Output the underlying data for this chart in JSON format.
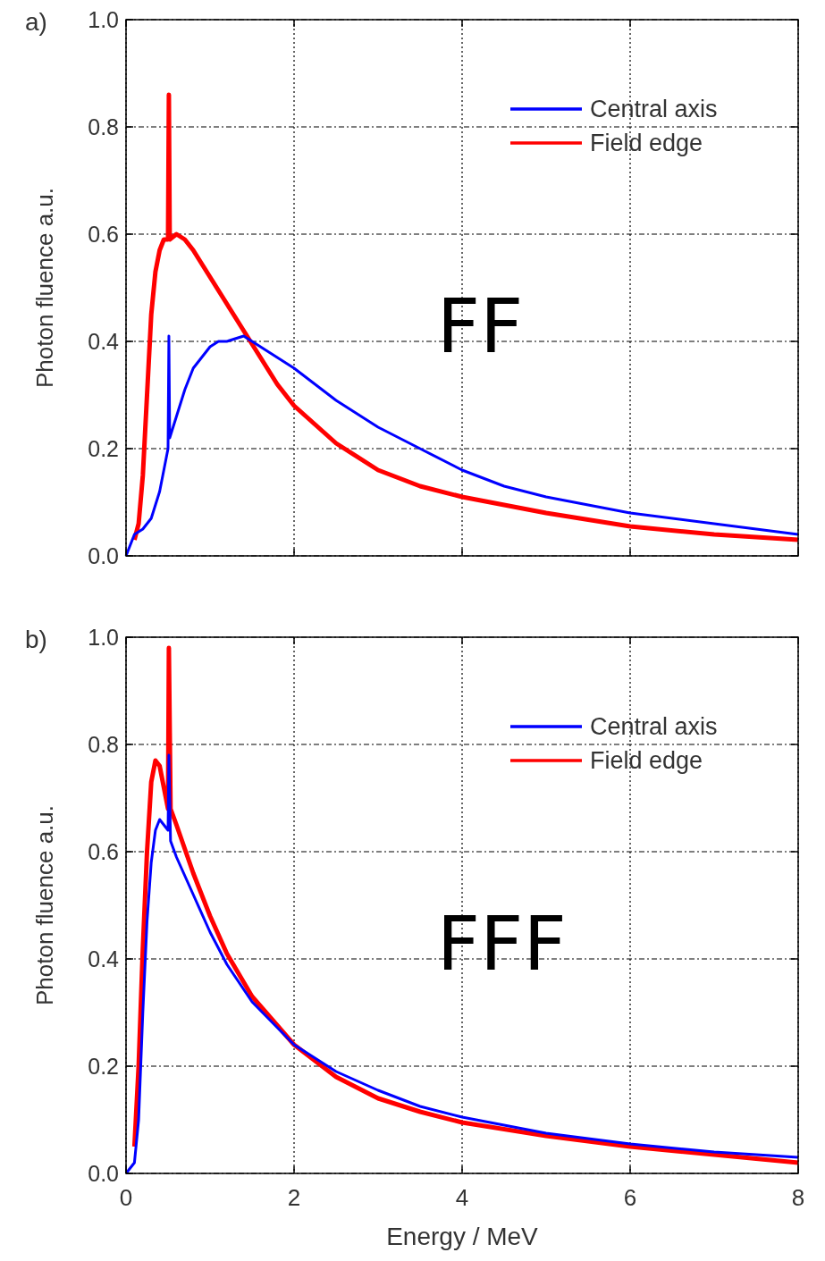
{
  "chart_data": [
    {
      "type": "line",
      "annotations": [
        "a)",
        "FF"
      ],
      "ylabel": "Photon fluence a.u.",
      "xlim": [
        0,
        8
      ],
      "xticks": [
        0,
        2,
        4,
        6,
        8
      ],
      "ylim": [
        0,
        1
      ],
      "yticks": [
        {
          "value": 0,
          "label": "0.0"
        },
        {
          "value": 0.2,
          "label": "0.2"
        },
        {
          "value": 0.4,
          "label": "0.4"
        },
        {
          "value": 0.6,
          "label": "0.6"
        },
        {
          "value": 0.8,
          "label": "0.8"
        },
        {
          "value": 1,
          "label": "1.0"
        }
      ],
      "grid": true,
      "legend": "top right",
      "tick_labels": "y",
      "series": [
        {
          "name": "Central axis",
          "color": "#0000ff",
          "x": [
            0,
            0.1,
            0.2,
            0.3,
            0.4,
            0.5,
            0.51,
            0.52,
            0.6,
            0.7,
            0.8,
            0.9,
            1.0,
            1.1,
            1.2,
            1.4,
            1.6,
            1.8,
            2.0,
            2.5,
            3,
            3.5,
            4,
            4.5,
            5,
            5.5,
            6,
            7,
            8
          ],
          "values": [
            0,
            0.04,
            0.05,
            0.07,
            0.12,
            0.2,
            0.41,
            0.22,
            0.26,
            0.31,
            0.35,
            0.37,
            0.39,
            0.4,
            0.4,
            0.41,
            0.39,
            0.37,
            0.35,
            0.29,
            0.24,
            0.2,
            0.16,
            0.13,
            0.11,
            0.095,
            0.08,
            0.06,
            0.04
          ]
        },
        {
          "name": "Field edge",
          "color": "#ff0000",
          "x": [
            0.1,
            0.15,
            0.2,
            0.25,
            0.3,
            0.35,
            0.4,
            0.45,
            0.5,
            0.51,
            0.52,
            0.6,
            0.7,
            0.8,
            1.0,
            1.2,
            1.4,
            1.6,
            1.8,
            2.0,
            2.5,
            3,
            3.5,
            4,
            5,
            6,
            7,
            8
          ],
          "values": [
            0.03,
            0.06,
            0.15,
            0.3,
            0.45,
            0.53,
            0.57,
            0.59,
            0.59,
            0.86,
            0.59,
            0.6,
            0.59,
            0.57,
            0.52,
            0.47,
            0.42,
            0.37,
            0.32,
            0.28,
            0.21,
            0.16,
            0.13,
            0.11,
            0.08,
            0.055,
            0.04,
            0.03
          ]
        }
      ]
    },
    {
      "type": "line",
      "annotations": [
        "b)",
        "FFF"
      ],
      "xlabel": "Energy / MeV",
      "ylabel": "Photon fluence a.u.",
      "xlim": [
        0,
        8
      ],
      "xticks": [
        0,
        2,
        4,
        6,
        8
      ],
      "ylim": [
        0,
        1
      ],
      "yticks": [
        {
          "value": 0,
          "label": "0.0"
        },
        {
          "value": 0.2,
          "label": "0.2"
        },
        {
          "value": 0.4,
          "label": "0.4"
        },
        {
          "value": 0.6,
          "label": "0.6"
        },
        {
          "value": 0.8,
          "label": "0.8"
        },
        {
          "value": 1,
          "label": "1.0"
        }
      ],
      "grid": true,
      "legend": "top right",
      "series": [
        {
          "name": "Central axis",
          "color": "#0000ff",
          "x": [
            0,
            0.1,
            0.15,
            0.2,
            0.25,
            0.3,
            0.35,
            0.4,
            0.45,
            0.5,
            0.51,
            0.53,
            0.6,
            0.8,
            1.0,
            1.2,
            1.5,
            2.0,
            2.5,
            3,
            3.5,
            4,
            5,
            6,
            7,
            8
          ],
          "values": [
            0,
            0.02,
            0.1,
            0.3,
            0.47,
            0.58,
            0.64,
            0.66,
            0.65,
            0.64,
            0.78,
            0.62,
            0.59,
            0.52,
            0.45,
            0.39,
            0.32,
            0.24,
            0.19,
            0.155,
            0.125,
            0.105,
            0.075,
            0.055,
            0.04,
            0.03
          ]
        },
        {
          "name": "Field edge",
          "color": "#ff0000",
          "x": [
            0.1,
            0.15,
            0.2,
            0.25,
            0.3,
            0.35,
            0.4,
            0.45,
            0.5,
            0.51,
            0.53,
            0.6,
            0.8,
            1.0,
            1.2,
            1.5,
            2.0,
            2.5,
            3,
            3.5,
            4,
            5,
            6,
            7,
            8
          ],
          "values": [
            0.05,
            0.2,
            0.42,
            0.6,
            0.73,
            0.77,
            0.76,
            0.72,
            0.68,
            0.98,
            0.68,
            0.65,
            0.56,
            0.48,
            0.41,
            0.33,
            0.24,
            0.18,
            0.14,
            0.115,
            0.095,
            0.07,
            0.05,
            0.035,
            0.02
          ]
        }
      ]
    }
  ]
}
